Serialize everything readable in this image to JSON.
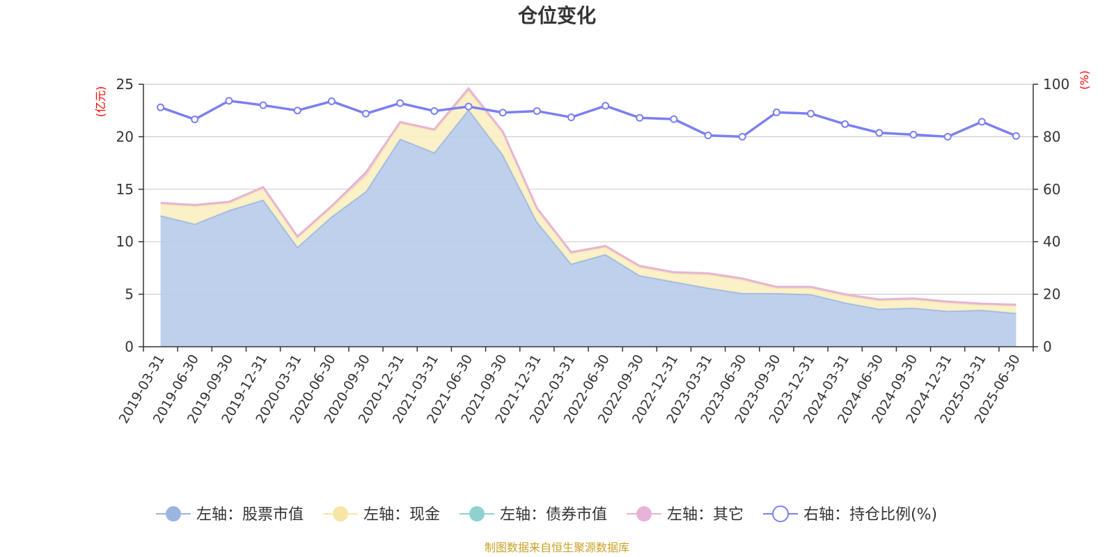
{
  "chart_data": {
    "type": "area",
    "title": "仓位变化",
    "left_axis": {
      "name": "(亿元)",
      "min": 0,
      "max": 25,
      "ticks": [
        0,
        5,
        10,
        15,
        20,
        25
      ]
    },
    "right_axis": {
      "name": "(%)",
      "min": 0,
      "max": 100,
      "ticks": [
        0,
        20,
        40,
        60,
        80,
        100
      ]
    },
    "categories": [
      "2019-03-31",
      "2019-06-30",
      "2019-09-30",
      "2019-12-31",
      "2020-03-31",
      "2020-06-30",
      "2020-09-30",
      "2020-12-31",
      "2021-03-31",
      "2021-06-30",
      "2021-09-30",
      "2021-12-31",
      "2022-03-31",
      "2022-06-30",
      "2022-09-30",
      "2022-12-31",
      "2023-03-31",
      "2023-06-30",
      "2023-09-30",
      "2023-12-31",
      "2024-03-31",
      "2024-06-30",
      "2024-09-30",
      "2024-12-31",
      "2025-03-31",
      "2025-06-30"
    ],
    "series": [
      {
        "name": "左轴：股票市值",
        "axis": "left",
        "stacked": true,
        "color": "#9ab6e0",
        "fill": "#b7cbea",
        "values": [
          12.5,
          11.7,
          13.0,
          14.0,
          9.5,
          12.4,
          14.8,
          19.8,
          18.5,
          22.6,
          18.3,
          11.9,
          7.9,
          8.8,
          6.8,
          6.2,
          5.6,
          5.1,
          5.1,
          5.0,
          4.2,
          3.6,
          3.7,
          3.4,
          3.5,
          3.2
        ]
      },
      {
        "name": "左轴：现金",
        "axis": "left",
        "stacked": true,
        "color": "#f6e6a6",
        "fill": "#fbefc2",
        "values": [
          1.1,
          1.7,
          0.7,
          1.1,
          0.9,
          0.9,
          1.5,
          1.5,
          2.1,
          1.8,
          2.1,
          1.2,
          1.0,
          0.7,
          0.8,
          0.8,
          1.3,
          1.3,
          0.5,
          0.6,
          0.7,
          0.8,
          0.8,
          0.8,
          0.5,
          0.7
        ]
      },
      {
        "name": "左轴：债券市值",
        "axis": "left",
        "stacked": true,
        "color": "#8fd1cf",
        "fill": "#a7dcda",
        "values": [
          0,
          0,
          0,
          0,
          0,
          0,
          0,
          0,
          0,
          0,
          0,
          0,
          0,
          0,
          0,
          0,
          0,
          0,
          0,
          0,
          0,
          0,
          0,
          0,
          0,
          0
        ]
      },
      {
        "name": "左轴：其它",
        "axis": "left",
        "stacked": true,
        "color": "#e6b4d8",
        "fill": "#ecc8e2",
        "values": [
          0.1,
          0.1,
          0.1,
          0.1,
          0.1,
          0.1,
          0.3,
          0.1,
          0.1,
          0.2,
          0.1,
          0.1,
          0.1,
          0.1,
          0.1,
          0.1,
          0.1,
          0.1,
          0.1,
          0.1,
          0.1,
          0.1,
          0.1,
          0.1,
          0.1,
          0.1
        ]
      },
      {
        "name": "右轴：持仓比例(%)",
        "axis": "right",
        "stacked": false,
        "color": "#7b7ff0",
        "values": [
          91.2,
          86.6,
          93.7,
          92.0,
          90.0,
          93.5,
          88.8,
          92.8,
          89.8,
          91.5,
          89.2,
          89.8,
          87.4,
          91.8,
          87.2,
          86.7,
          80.5,
          80.0,
          89.3,
          88.8,
          84.8,
          81.5,
          80.8,
          80.0,
          85.7,
          80.3
        ]
      }
    ],
    "legend_position": "bottom-center",
    "grid": true
  },
  "source": "制图数据来自恒生聚源数据库"
}
